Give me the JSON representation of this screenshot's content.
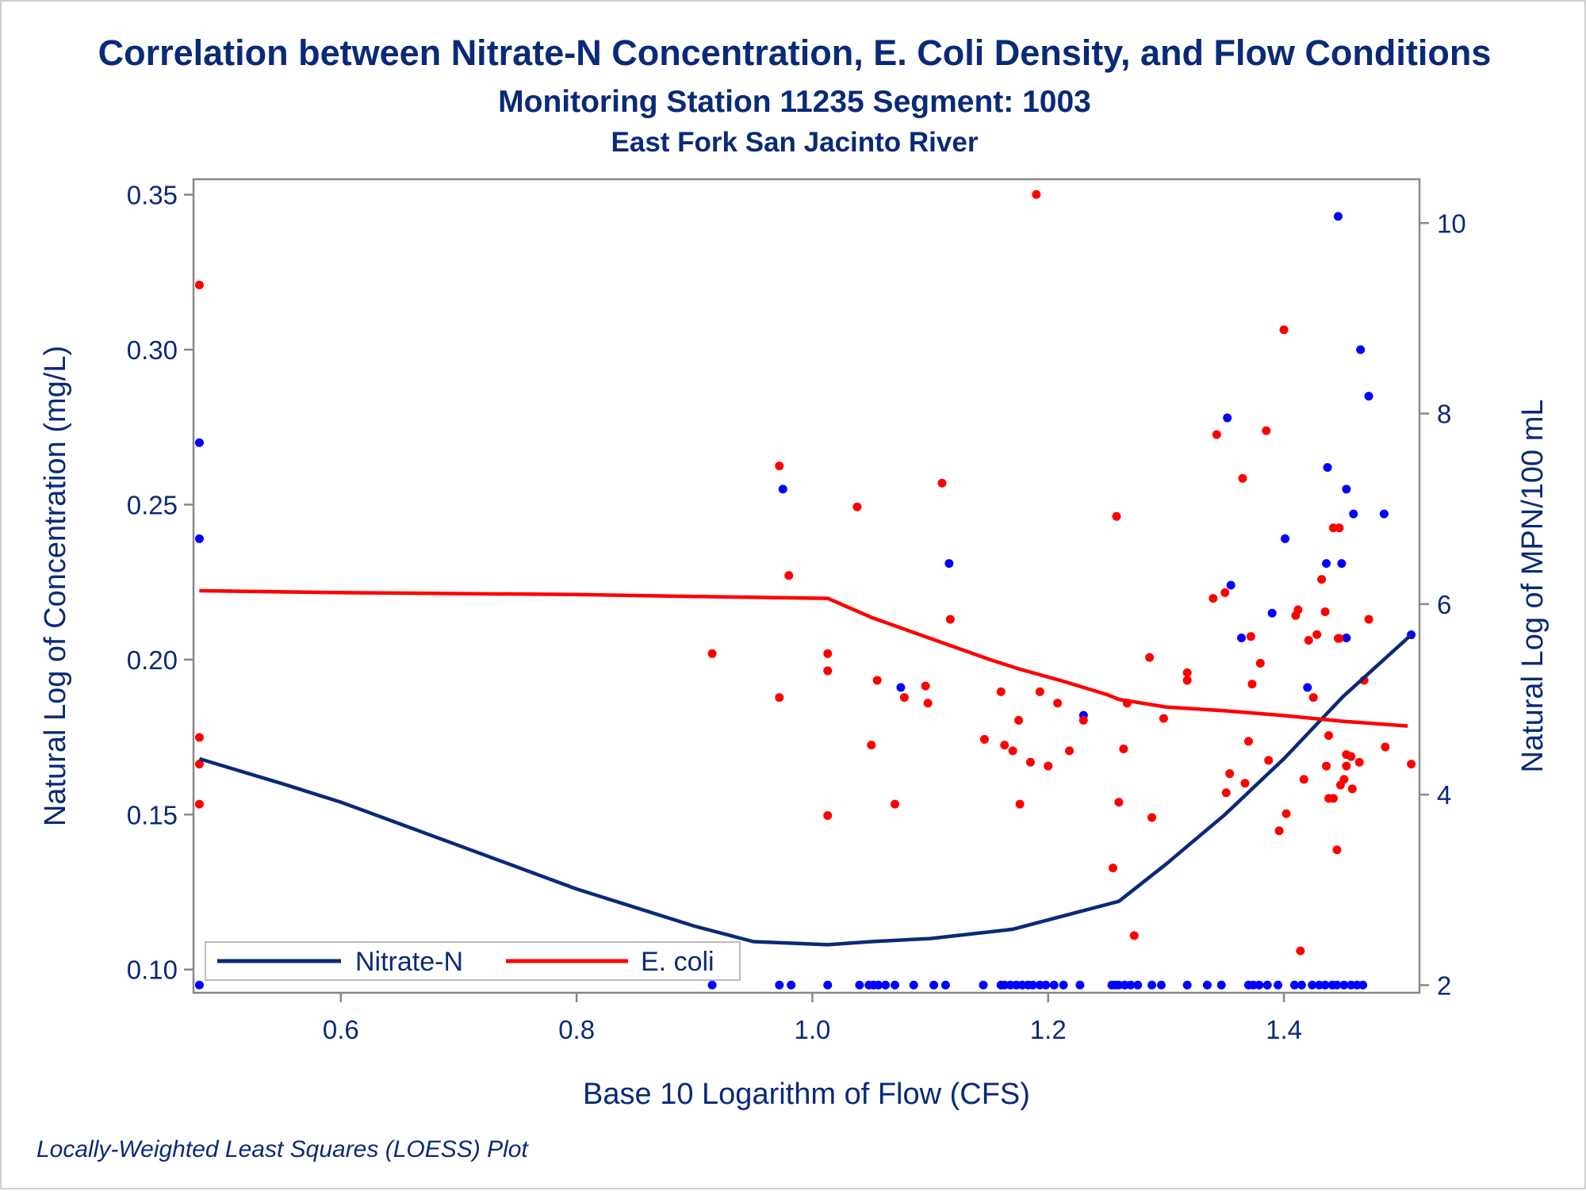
{
  "chart_data": {
    "type": "scatter",
    "title": "Correlation between Nitrate-N Concentration, E. Coli Density, and Flow Conditions",
    "subtitle": "Monitoring Station 11235 Segment: 1003",
    "subtitle2": "East Fork San Jacinto River",
    "footnote": "Locally-Weighted Least Squares (LOESS) Plot",
    "xlabel": "Base 10 Logarithm of Flow (CFS)",
    "ylabel": "Natural Log of Concentration (mg/L)",
    "y2label": "Natural Log of MPN/100 mL",
    "xlim": [
      0.475,
      1.515
    ],
    "ylim": [
      0.0925,
      0.355
    ],
    "y2lim": [
      1.92,
      10.46
    ],
    "xticks": [
      0.6,
      0.8,
      1.0,
      1.2,
      1.4
    ],
    "xtick_labels": [
      "0.6",
      "0.8",
      "1.0",
      "1.2",
      "1.4"
    ],
    "yticks": [
      0.1,
      0.15,
      0.2,
      0.25,
      0.3,
      0.35
    ],
    "ytick_labels": [
      "0.10",
      "0.15",
      "0.20",
      "0.25",
      "0.30",
      "0.35"
    ],
    "y2ticks": [
      2,
      4,
      6,
      8,
      10
    ],
    "y2tick_labels": [
      "2",
      "4",
      "6",
      "8",
      "10"
    ],
    "legend": {
      "position": "bottom-left inside",
      "entries": [
        "Nitrate-N",
        "E. coli"
      ]
    },
    "colors": {
      "nitrate": "#0a2a78",
      "ecoli": "#ff0000",
      "nitrate_points": "#0000ff",
      "ecoli_points": "#ff0000",
      "text": "#0a2a78",
      "axis": "#888888"
    },
    "series": [
      {
        "name": "Nitrate-N",
        "axis": "left",
        "points": [
          [
            0.48,
            0.095
          ],
          [
            0.48,
            0.27
          ],
          [
            0.48,
            0.239
          ],
          [
            0.915,
            0.095
          ],
          [
            0.972,
            0.095
          ],
          [
            0.975,
            0.255
          ],
          [
            0.982,
            0.095
          ],
          [
            1.013,
            0.095
          ],
          [
            1.04,
            0.095
          ],
          [
            1.048,
            0.095
          ],
          [
            1.052,
            0.095
          ],
          [
            1.056,
            0.095
          ],
          [
            1.062,
            0.095
          ],
          [
            1.07,
            0.095
          ],
          [
            1.075,
            0.191
          ],
          [
            1.086,
            0.095
          ],
          [
            1.103,
            0.095
          ],
          [
            1.113,
            0.095
          ],
          [
            1.116,
            0.231
          ],
          [
            1.145,
            0.095
          ],
          [
            1.16,
            0.095
          ],
          [
            1.163,
            0.095
          ],
          [
            1.168,
            0.095
          ],
          [
            1.173,
            0.095
          ],
          [
            1.178,
            0.095
          ],
          [
            1.183,
            0.095
          ],
          [
            1.187,
            0.095
          ],
          [
            1.193,
            0.095
          ],
          [
            1.198,
            0.095
          ],
          [
            1.205,
            0.095
          ],
          [
            1.213,
            0.095
          ],
          [
            1.227,
            0.095
          ],
          [
            1.23,
            0.182
          ],
          [
            1.254,
            0.095
          ],
          [
            1.257,
            0.095
          ],
          [
            1.26,
            0.095
          ],
          [
            1.265,
            0.095
          ],
          [
            1.27,
            0.095
          ],
          [
            1.276,
            0.095
          ],
          [
            1.288,
            0.095
          ],
          [
            1.296,
            0.095
          ],
          [
            1.318,
            0.095
          ],
          [
            1.335,
            0.095
          ],
          [
            1.347,
            0.095
          ],
          [
            1.352,
            0.278
          ],
          [
            1.355,
            0.224
          ],
          [
            1.364,
            0.207
          ],
          [
            1.37,
            0.095
          ],
          [
            1.374,
            0.095
          ],
          [
            1.379,
            0.095
          ],
          [
            1.386,
            0.095
          ],
          [
            1.39,
            0.215
          ],
          [
            1.395,
            0.095
          ],
          [
            1.401,
            0.239
          ],
          [
            1.409,
            0.095
          ],
          [
            1.415,
            0.095
          ],
          [
            1.42,
            0.191
          ],
          [
            1.424,
            0.095
          ],
          [
            1.43,
            0.095
          ],
          [
            1.435,
            0.095
          ],
          [
            1.436,
            0.231
          ],
          [
            1.437,
            0.262
          ],
          [
            1.441,
            0.095
          ],
          [
            1.445,
            0.095
          ],
          [
            1.446,
            0.343
          ],
          [
            1.449,
            0.231
          ],
          [
            1.451,
            0.095
          ],
          [
            1.453,
            0.255
          ],
          [
            1.453,
            0.207
          ],
          [
            1.457,
            0.095
          ],
          [
            1.459,
            0.247
          ],
          [
            1.462,
            0.095
          ],
          [
            1.467,
            0.095
          ],
          [
            1.465,
            0.3
          ],
          [
            1.472,
            0.285
          ],
          [
            1.485,
            0.247
          ],
          [
            1.508,
            0.208
          ]
        ],
        "loess": [
          [
            0.48,
            0.168
          ],
          [
            0.55,
            0.16
          ],
          [
            0.6,
            0.154
          ],
          [
            0.7,
            0.14
          ],
          [
            0.8,
            0.126
          ],
          [
            0.9,
            0.114
          ],
          [
            0.95,
            0.109
          ],
          [
            1.013,
            0.108
          ],
          [
            1.05,
            0.109
          ],
          [
            1.1,
            0.11
          ],
          [
            1.17,
            0.113
          ],
          [
            1.21,
            0.117
          ],
          [
            1.26,
            0.122
          ],
          [
            1.3,
            0.134
          ],
          [
            1.35,
            0.15
          ],
          [
            1.4,
            0.168
          ],
          [
            1.45,
            0.188
          ],
          [
            1.508,
            0.208
          ]
        ]
      },
      {
        "name": "E. coli",
        "axis": "right",
        "points": [
          [
            0.48,
            9.35
          ],
          [
            0.48,
            4.6
          ],
          [
            0.48,
            4.32
          ],
          [
            0.48,
            3.9
          ],
          [
            0.915,
            5.48
          ],
          [
            0.972,
            7.45
          ],
          [
            0.972,
            5.02
          ],
          [
            0.98,
            6.3
          ],
          [
            1.013,
            5.48
          ],
          [
            1.013,
            5.3
          ],
          [
            1.013,
            3.78
          ],
          [
            1.038,
            7.02
          ],
          [
            1.05,
            4.52
          ],
          [
            1.055,
            5.2
          ],
          [
            1.07,
            3.9
          ],
          [
            1.078,
            5.02
          ],
          [
            1.096,
            5.14
          ],
          [
            1.098,
            4.96
          ],
          [
            1.11,
            7.27
          ],
          [
            1.117,
            5.84
          ],
          [
            1.146,
            4.58
          ],
          [
            1.16,
            5.08
          ],
          [
            1.163,
            4.52
          ],
          [
            1.17,
            4.46
          ],
          [
            1.175,
            4.78
          ],
          [
            1.176,
            3.9
          ],
          [
            1.185,
            4.34
          ],
          [
            1.19,
            10.3
          ],
          [
            1.193,
            5.08
          ],
          [
            1.2,
            4.3
          ],
          [
            1.208,
            4.96
          ],
          [
            1.218,
            4.46
          ],
          [
            1.23,
            4.78
          ],
          [
            1.255,
            3.23
          ],
          [
            1.258,
            6.92
          ],
          [
            1.26,
            3.92
          ],
          [
            1.264,
            4.48
          ],
          [
            1.267,
            4.96
          ],
          [
            1.273,
            2.52
          ],
          [
            1.286,
            5.44
          ],
          [
            1.288,
            3.76
          ],
          [
            1.298,
            4.8
          ],
          [
            1.318,
            5.28
          ],
          [
            1.318,
            5.2
          ],
          [
            1.34,
            6.06
          ],
          [
            1.343,
            7.78
          ],
          [
            1.35,
            6.12
          ],
          [
            1.351,
            4.02
          ],
          [
            1.354,
            4.22
          ],
          [
            1.365,
            7.32
          ],
          [
            1.367,
            4.12
          ],
          [
            1.37,
            4.56
          ],
          [
            1.372,
            5.66
          ],
          [
            1.373,
            5.16
          ],
          [
            1.38,
            5.38
          ],
          [
            1.385,
            7.82
          ],
          [
            1.387,
            4.36
          ],
          [
            1.396,
            3.62
          ],
          [
            1.4,
            8.88
          ],
          [
            1.402,
            3.8
          ],
          [
            1.41,
            5.88
          ],
          [
            1.412,
            5.94
          ],
          [
            1.414,
            2.36
          ],
          [
            1.417,
            4.16
          ],
          [
            1.421,
            5.62
          ],
          [
            1.425,
            5.02
          ],
          [
            1.428,
            5.68
          ],
          [
            1.432,
            6.26
          ],
          [
            1.435,
            5.92
          ],
          [
            1.436,
            4.3
          ],
          [
            1.438,
            4.62
          ],
          [
            1.438,
            3.96
          ],
          [
            1.442,
            6.8
          ],
          [
            1.442,
            3.96
          ],
          [
            1.447,
            6.8
          ],
          [
            1.445,
            3.42
          ],
          [
            1.446,
            5.64
          ],
          [
            1.447,
            5.64
          ],
          [
            1.448,
            4.1
          ],
          [
            1.451,
            4.16
          ],
          [
            1.453,
            4.42
          ],
          [
            1.453,
            4.3
          ],
          [
            1.457,
            4.4
          ],
          [
            1.458,
            4.06
          ],
          [
            1.464,
            4.34
          ],
          [
            1.468,
            5.2
          ],
          [
            1.472,
            5.84
          ],
          [
            1.486,
            4.5
          ],
          [
            1.508,
            4.32
          ]
        ],
        "loess": [
          [
            0.48,
            6.14
          ],
          [
            0.6,
            6.12
          ],
          [
            0.7,
            6.11
          ],
          [
            0.8,
            6.1
          ],
          [
            0.9,
            6.08
          ],
          [
            1.013,
            6.06
          ],
          [
            1.05,
            5.86
          ],
          [
            1.1,
            5.64
          ],
          [
            1.15,
            5.42
          ],
          [
            1.175,
            5.32
          ],
          [
            1.21,
            5.2
          ],
          [
            1.25,
            5.05
          ],
          [
            1.26,
            5.0
          ],
          [
            1.28,
            4.96
          ],
          [
            1.3,
            4.92
          ],
          [
            1.35,
            4.88
          ],
          [
            1.4,
            4.83
          ],
          [
            1.45,
            4.77
          ],
          [
            1.505,
            4.72
          ]
        ]
      }
    ]
  }
}
